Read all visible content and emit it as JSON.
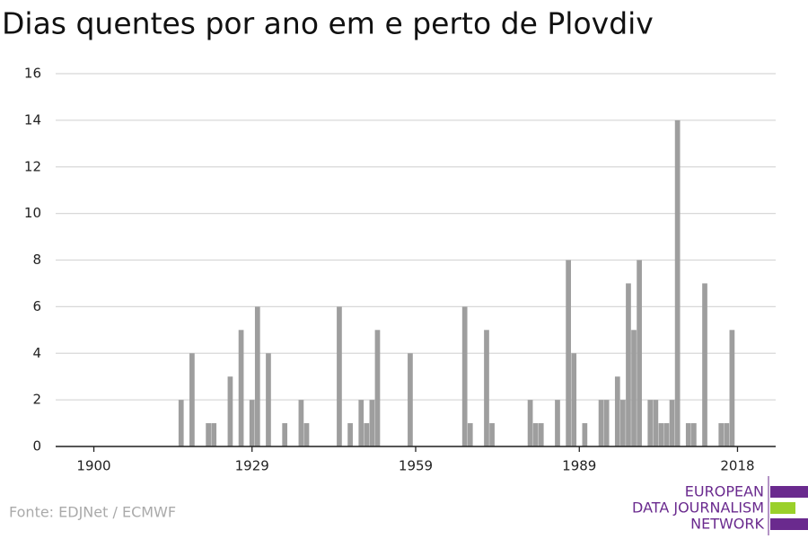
{
  "chart_data": {
    "type": "bar",
    "title": "Dias quentes por ano em e perto de Plovdiv",
    "source": "Fonte: EDJNet / ECMWF",
    "logo": [
      "EUROPEAN",
      "DATA JOURNALISM",
      "NETWORK"
    ],
    "color": "#9e9e9e",
    "x": [
      1916,
      1918,
      1921,
      1922,
      1925,
      1927,
      1929,
      1930,
      1932,
      1935,
      1938,
      1939,
      1945,
      1947,
      1949,
      1950,
      1951,
      1952,
      1958,
      1968,
      1969,
      1972,
      1973,
      1980,
      1981,
      1982,
      1985,
      1987,
      1988,
      1990,
      1993,
      1994,
      1996,
      1997,
      1998,
      1999,
      2000,
      2002,
      2003,
      2004,
      2005,
      2006,
      2007,
      2009,
      2010,
      2012,
      2015,
      2016,
      2017
    ],
    "values": [
      2,
      4,
      1,
      1,
      3,
      5,
      2,
      6,
      4,
      1,
      2,
      1,
      6,
      1,
      2,
      1,
      2,
      5,
      4,
      6,
      1,
      5,
      1,
      2,
      1,
      1,
      2,
      8,
      4,
      1,
      2,
      2,
      3,
      2,
      7,
      5,
      8,
      2,
      2,
      1,
      1,
      2,
      14,
      1,
      1,
      7,
      1,
      1,
      5
    ],
    "xlim": [
      1893,
      2025
    ],
    "xticks": [
      1900,
      1929,
      1959,
      1989,
      2018
    ],
    "ylim": [
      0,
      16
    ],
    "yticks": [
      0,
      2,
      4,
      6,
      8,
      10,
      12,
      14,
      16
    ],
    "grid": true
  }
}
